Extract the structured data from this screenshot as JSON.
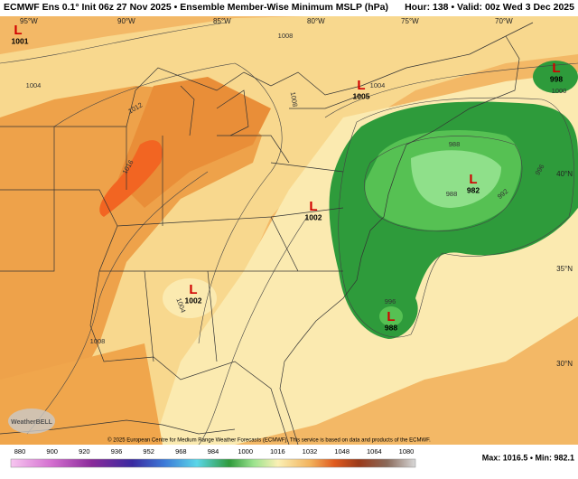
{
  "header": {
    "left": "ECMWF Ens 0.1° Init 06z 27 Nov 2025 • Ensemble Member-Wise Minimum MSLP (hPa)",
    "right": "Hour: 138 • Valid: 00z Wed 3 Dec 2025"
  },
  "longitudes": [
    "95°W",
    "90°W",
    "85°W",
    "80°W",
    "75°W",
    "70°W"
  ],
  "latitudes": [
    "40°N",
    "35°N",
    "30°N"
  ],
  "lows": [
    {
      "symbol": "L",
      "pressure": "1001"
    },
    {
      "symbol": "L",
      "pressure": "1005"
    },
    {
      "symbol": "L",
      "pressure": "1002"
    },
    {
      "symbol": "L",
      "pressure": "1002"
    },
    {
      "symbol": "L",
      "pressure": "982"
    },
    {
      "symbol": "L",
      "pressure": "988"
    },
    {
      "symbol": "L",
      "pressure": "998"
    }
  ],
  "contour_labels": [
    "1004",
    "1008",
    "1012",
    "1016",
    "1008",
    "1004",
    "988",
    "988",
    "992",
    "996",
    "996",
    "1004",
    "1008",
    "1000"
  ],
  "logo": "WeatherBELL",
  "copyright": "© 2025 European Centre for Medium Range Weather Forecasts (ECMWF). This service is based on data and products of the ECMWF.",
  "colorbar": {
    "ticks": [
      "880",
      "900",
      "920",
      "936",
      "952",
      "968",
      "984",
      "1000",
      "1016",
      "1032",
      "1048",
      "1064",
      "1080"
    ]
  },
  "stats": "Max: 1016.5 • Min: 982.1"
}
